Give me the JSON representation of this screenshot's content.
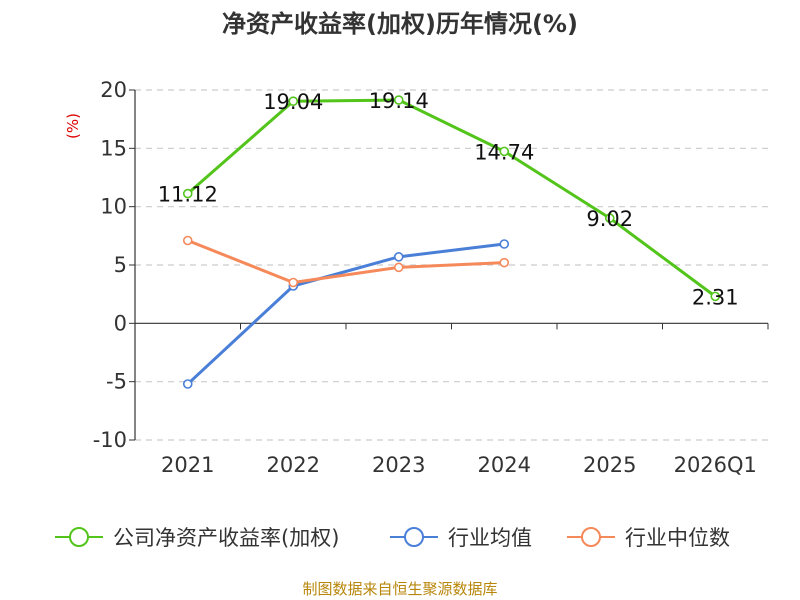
{
  "chart_data": {
    "type": "line",
    "title": "净资产收益率(加权)历年情况(%)",
    "ylabel": "(%)",
    "xlabel": "",
    "categories": [
      "2021",
      "2022",
      "2023",
      "2024",
      "2025",
      "2026Q1"
    ],
    "ylim": [
      -10,
      20
    ],
    "yticks": [
      20,
      15,
      10,
      5,
      0,
      -5,
      -10
    ],
    "grid": true,
    "legend_position": "bottom",
    "series": [
      {
        "name": "公司净资产收益率(加权)",
        "color": "#52c41a",
        "values": [
          11.12,
          19.04,
          19.14,
          14.74,
          9.02,
          2.31
        ],
        "labels": [
          "11.12",
          "19.04",
          "19.14",
          "14.74",
          "9.02",
          "2.31"
        ]
      },
      {
        "name": "行业均值",
        "color": "#4a7fd8",
        "values": [
          -5.2,
          3.2,
          5.7,
          6.8,
          null,
          null
        ]
      },
      {
        "name": "行业中位数",
        "color": "#f5895a",
        "values": [
          7.1,
          3.5,
          4.8,
          5.2,
          null,
          null
        ]
      }
    ]
  },
  "footer": "制图数据来自恒生聚源数据库"
}
